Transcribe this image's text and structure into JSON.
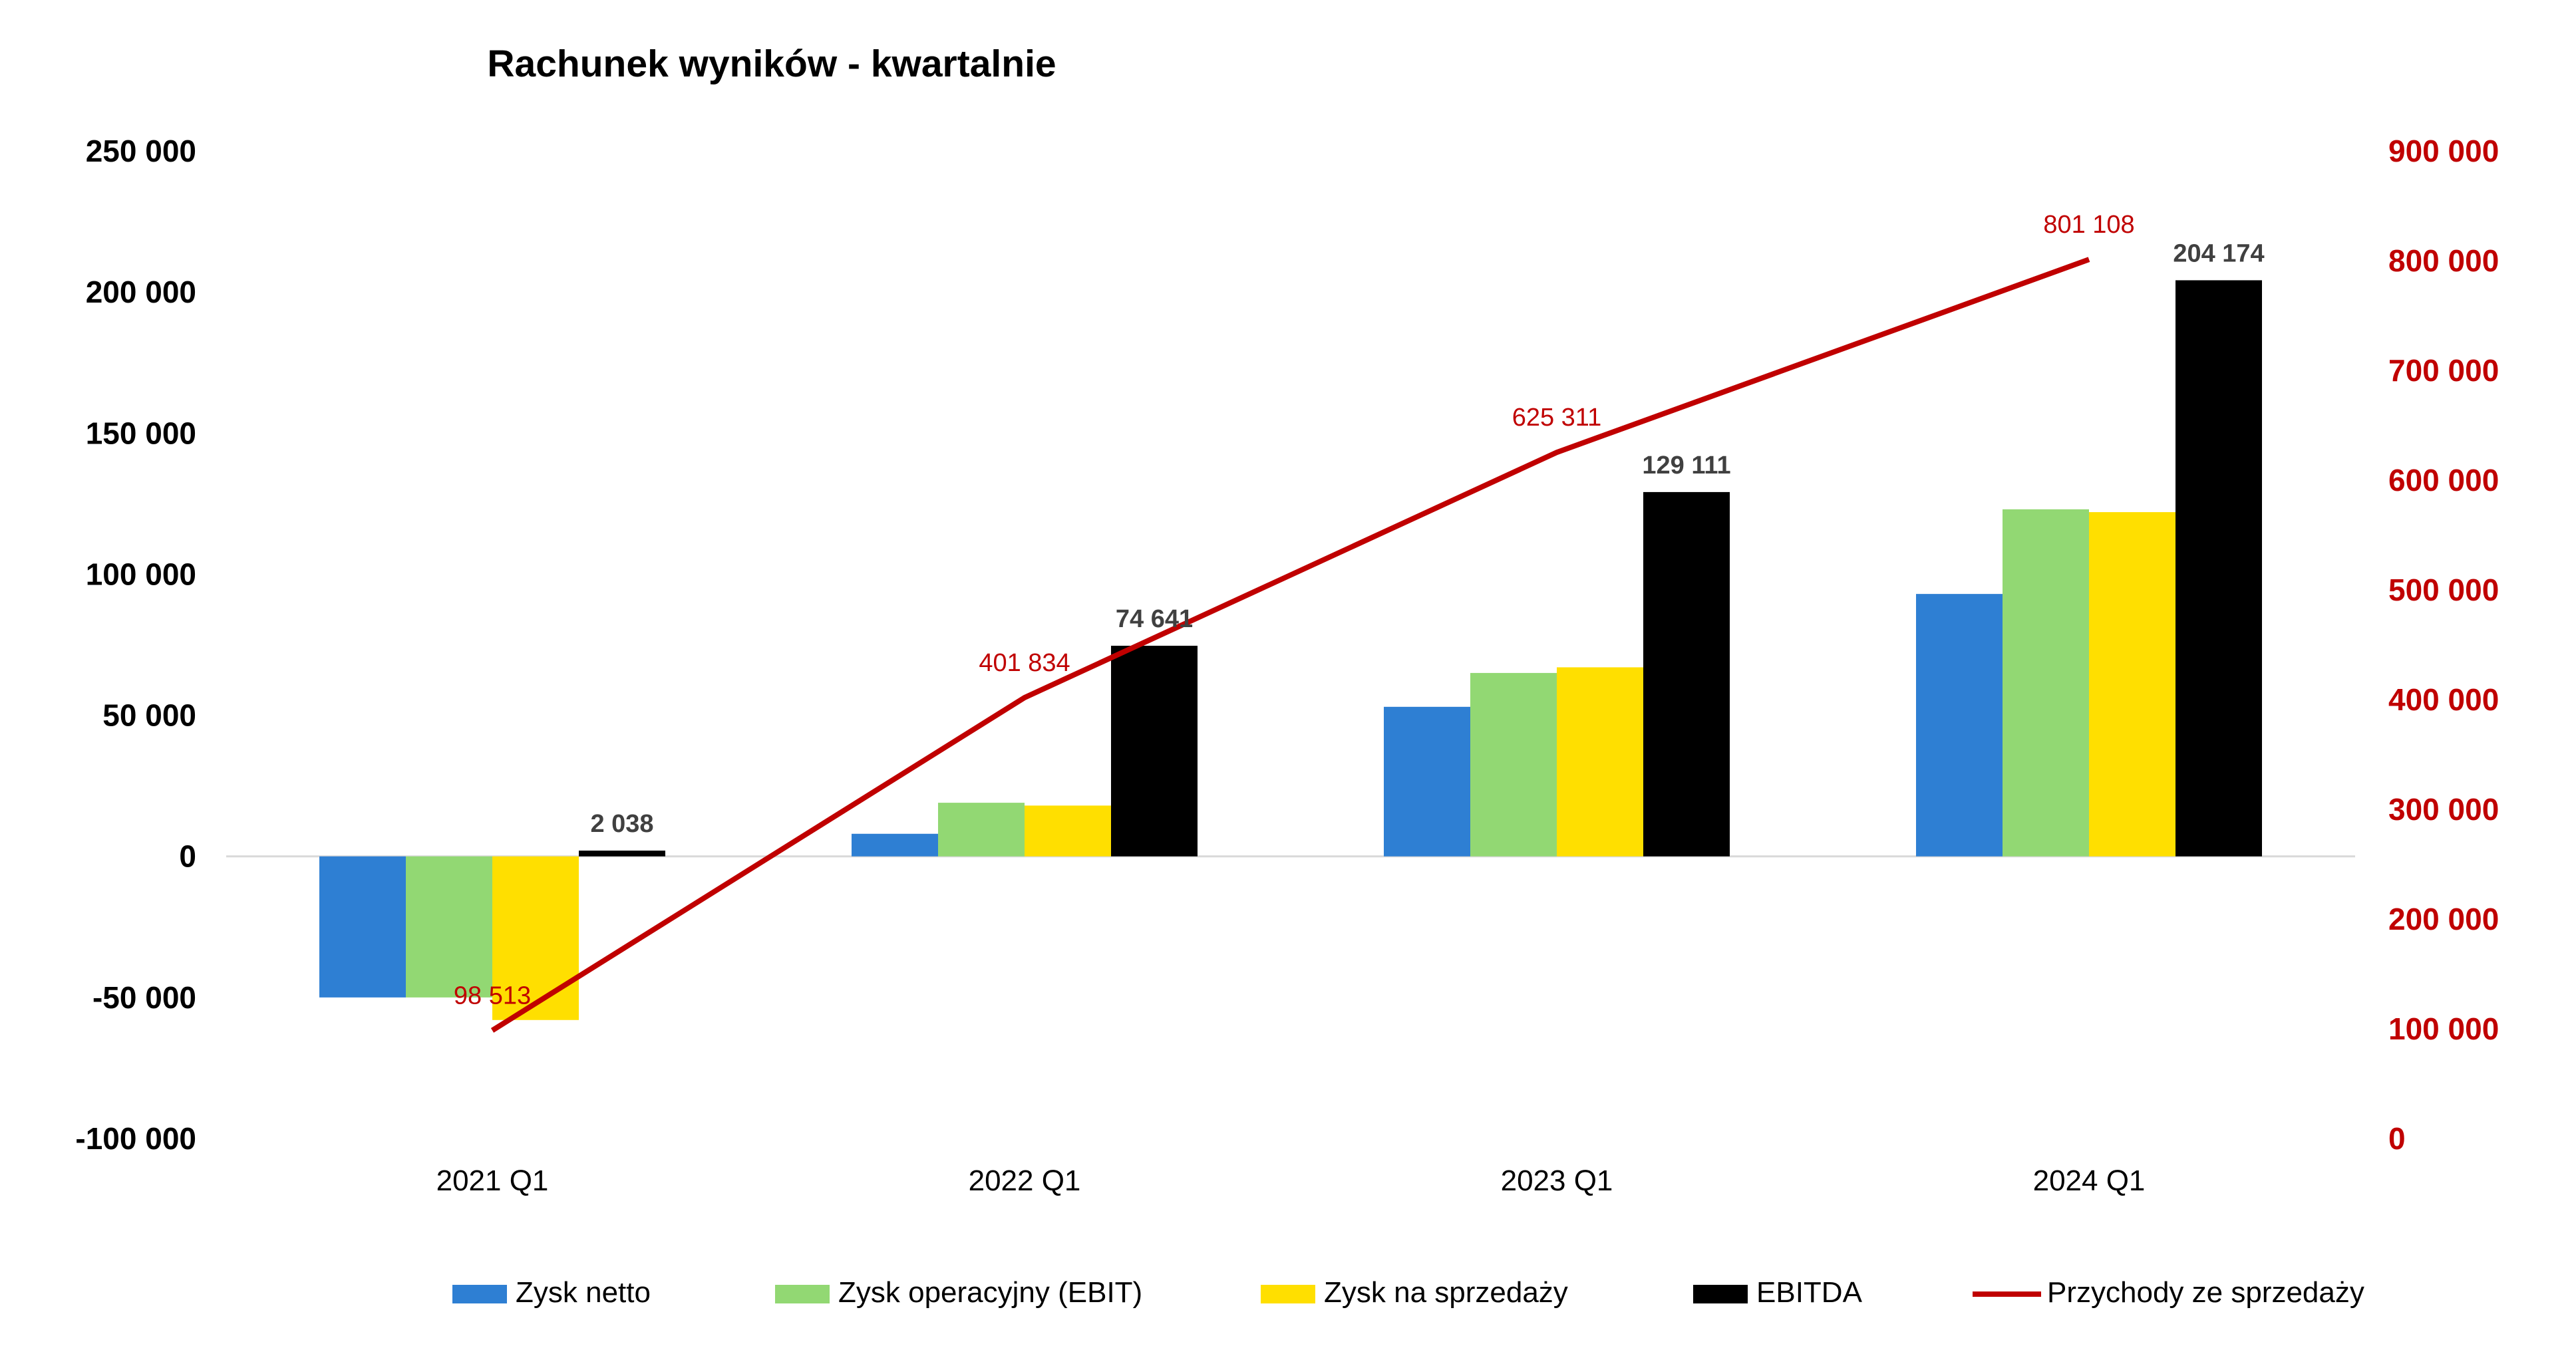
{
  "chart_data": {
    "type": "bar",
    "title": "Rachunek wyników - kwartalnie",
    "categories": [
      "2021 Q1",
      "2022 Q1",
      "2023 Q1",
      "2024 Q1"
    ],
    "series": [
      {
        "name": "Zysk netto",
        "type": "bar",
        "axis": "left",
        "color": "#2e7fd3",
        "values": [
          -50000,
          8000,
          53000,
          93000
        ]
      },
      {
        "name": "Zysk operacyjny (EBIT)",
        "type": "bar",
        "axis": "left",
        "color": "#92d873",
        "values": [
          -50000,
          19000,
          65000,
          123000
        ]
      },
      {
        "name": "Zysk na sprzedaży",
        "type": "bar",
        "axis": "left",
        "color": "#ffdf00",
        "values": [
          -58000,
          18000,
          67000,
          122000
        ]
      },
      {
        "name": "EBITDA",
        "type": "bar",
        "axis": "left",
        "color": "#000000",
        "values": [
          2038,
          74641,
          129111,
          204174
        ],
        "labels": [
          "2 038",
          "74 641",
          "129 111",
          "204 174"
        ]
      },
      {
        "name": "Przychody ze sprzedaży",
        "type": "line",
        "axis": "right",
        "color": "#c00000",
        "values": [
          98513,
          401834,
          625311,
          801108
        ],
        "labels": [
          "98 513",
          "401 834",
          "625 311",
          "801 108"
        ]
      }
    ],
    "y_left": {
      "ylim": [
        -100000,
        250000
      ],
      "ticks": [
        250000,
        200000,
        150000,
        100000,
        50000,
        0,
        -50000,
        -100000
      ],
      "tick_labels": [
        "250 000",
        "200 000",
        "150 000",
        "100 000",
        "50 000",
        "0",
        "-50 000",
        "-100 000"
      ]
    },
    "y_right": {
      "ylim": [
        0,
        900000
      ],
      "color": "#c00000",
      "ticks": [
        900000,
        800000,
        700000,
        600000,
        500000,
        400000,
        300000,
        200000,
        100000,
        0
      ],
      "tick_labels": [
        "900 000",
        "800 000",
        "700 000",
        "600 000",
        "500 000",
        "400 000",
        "300 000",
        "200 000",
        "100 000",
        "0"
      ]
    },
    "grid": false,
    "legend": "bottom"
  }
}
